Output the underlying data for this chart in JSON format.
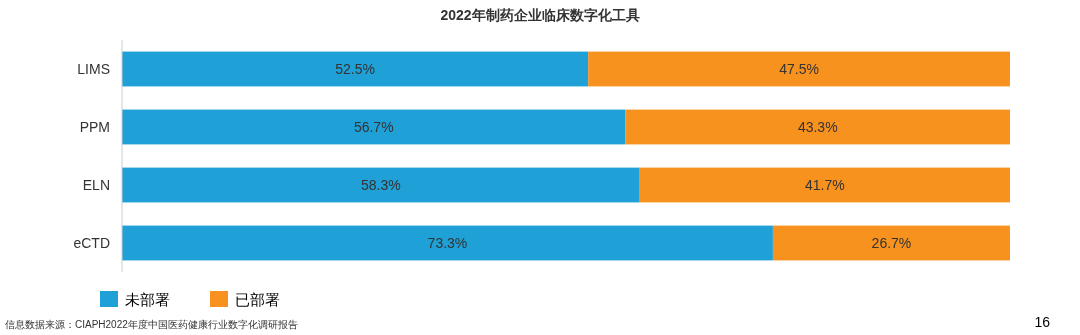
{
  "chart_data": {
    "type": "bar",
    "orientation": "horizontal",
    "stacked": true,
    "title": "2022年制药企业临床数字化工具",
    "categories": [
      "LIMS",
      "PPM",
      "ELN",
      "eCTD"
    ],
    "series": [
      {
        "name": "未部署",
        "color": "#1fa0d6",
        "values": [
          52.5,
          56.7,
          58.3,
          73.3
        ],
        "value_labels": [
          "52.5%",
          "56.7%",
          "58.3%",
          "73.3%"
        ]
      },
      {
        "name": "已部署",
        "color": "#f7921e",
        "values": [
          47.5,
          43.3,
          41.7,
          26.7
        ],
        "value_labels": [
          "47.5%",
          "43.3%",
          "41.7%",
          "26.7%"
        ]
      }
    ],
    "tick_labels": "y",
    "legend": "bottom left",
    "annotations": [
      "信息数据来源：CIAPH2022年度中国医药健康行业数字化调研报告",
      "16"
    ]
  }
}
